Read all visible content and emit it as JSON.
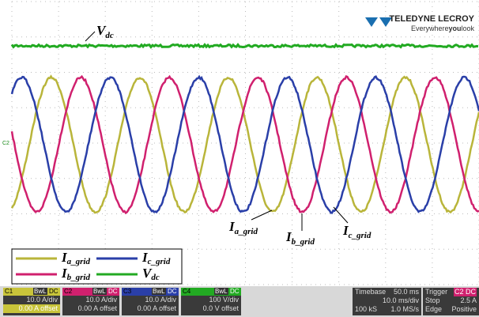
{
  "logo": {
    "brand": "TELEDYNE LECROY",
    "tagline_pre": "Everywhere",
    "tagline_bold": "you",
    "tagline_post": "look"
  },
  "ground_marker": "C2",
  "annotations": [
    {
      "symbol": "V",
      "sub": "dc"
    },
    {
      "symbol": "I",
      "sub": "a_grid"
    },
    {
      "symbol": "I",
      "sub": "b_grid"
    },
    {
      "symbol": "I",
      "sub": "c_grid"
    }
  ],
  "legend": [
    {
      "symbol": "I",
      "sub": "a_grid"
    },
    {
      "symbol": "I",
      "sub": "c_grid"
    },
    {
      "symbol": "I",
      "sub": "b_grid"
    },
    {
      "symbol": "V",
      "sub": "dc"
    }
  ],
  "channels": [
    {
      "id": "C1",
      "bw": "BwL",
      "coupling": "DC",
      "scale": "10.0 A/div",
      "offset": "0.00 A offset"
    },
    {
      "id": "C2",
      "bw": "BwL",
      "coupling": "DC",
      "scale": "10.0 A/div",
      "offset": "0.00 A offset"
    },
    {
      "id": "C3",
      "bw": "BwL",
      "coupling": "DC",
      "scale": "10.0 A/div",
      "offset": "0.00 A offset"
    },
    {
      "id": "C4",
      "bw": "BwL",
      "coupling": "DC",
      "scale": "100 V/div",
      "offset": "0.0 V offset"
    }
  ],
  "timebase": {
    "label": "Timebase",
    "delay": "50.0 ms",
    "scale": "10.0 ms/div",
    "samples": "100 kS",
    "rate": "1.0 MS/s"
  },
  "trigger": {
    "label": "Trigger",
    "source": "C2",
    "coupling": "DC",
    "mode": "Stop",
    "level": "2.5 A",
    "type": "Edge",
    "slope": "Positive"
  }
}
